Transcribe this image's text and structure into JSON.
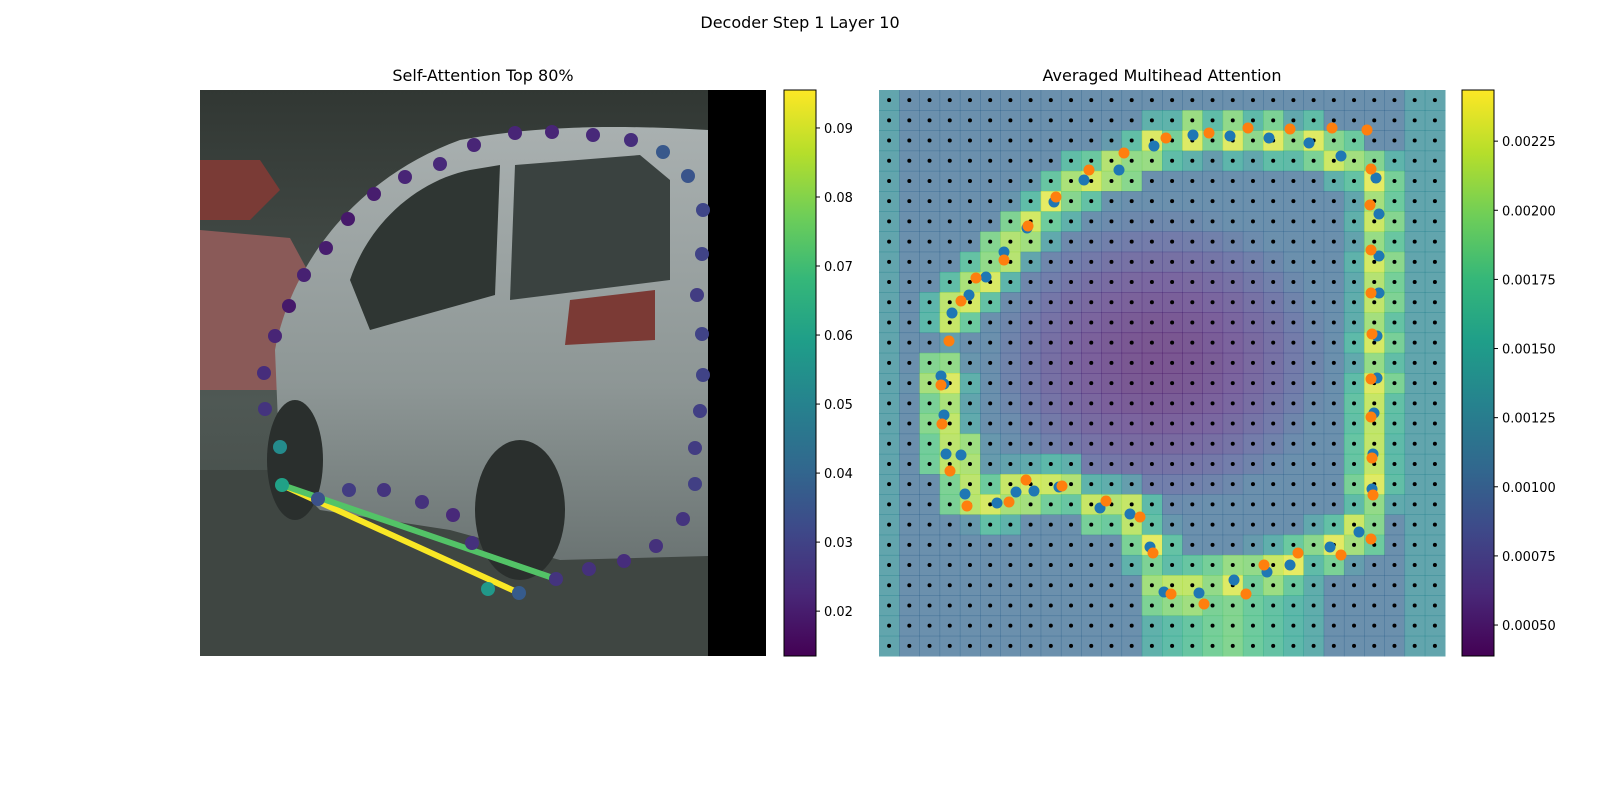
{
  "figure": {
    "title": "Decoder Step 1 Layer 10"
  },
  "colors": {
    "viridis": [
      "#440154",
      "#482878",
      "#3e4989",
      "#31688e",
      "#26828e",
      "#1f9e89",
      "#35b779",
      "#6ece58",
      "#b5de2b",
      "#fde725"
    ],
    "background_photo_left": "#4c5552",
    "black_bar": "#000000",
    "point_blue": "#1f77b4",
    "point_orange": "#ff7f0e",
    "grid_dot": "#000000"
  },
  "chart_data": [
    {
      "type": "scatter",
      "title": "Self-Attention Top 80%",
      "xlabel": "",
      "ylabel": "",
      "axes_visible": false,
      "background": "photo of silver minivan with black right margin",
      "colorbar": {
        "min": 0.0135,
        "max": 0.0955,
        "ticks": [
          "0.02",
          "0.03",
          "0.04",
          "0.05",
          "0.06",
          "0.07",
          "0.08",
          "0.09"
        ],
        "tick_values": [
          0.02,
          0.03,
          0.04,
          0.05,
          0.06,
          0.07,
          0.08,
          0.09
        ],
        "colormap": "viridis"
      },
      "points": [
        {
          "x": 82,
          "y": 395,
          "v": 0.06
        },
        {
          "x": 80,
          "y": 357,
          "v": 0.053
        },
        {
          "x": 65,
          "y": 319,
          "v": 0.026
        },
        {
          "x": 64,
          "y": 283,
          "v": 0.024
        },
        {
          "x": 75,
          "y": 246,
          "v": 0.022
        },
        {
          "x": 89,
          "y": 216,
          "v": 0.019
        },
        {
          "x": 104,
          "y": 185,
          "v": 0.021
        },
        {
          "x": 126,
          "y": 158,
          "v": 0.02
        },
        {
          "x": 148,
          "y": 129,
          "v": 0.019
        },
        {
          "x": 174,
          "y": 104,
          "v": 0.02
        },
        {
          "x": 205,
          "y": 87,
          "v": 0.022
        },
        {
          "x": 240,
          "y": 74,
          "v": 0.023
        },
        {
          "x": 274,
          "y": 55,
          "v": 0.022
        },
        {
          "x": 315,
          "y": 43,
          "v": 0.022
        },
        {
          "x": 352,
          "y": 42,
          "v": 0.022
        },
        {
          "x": 393,
          "y": 45,
          "v": 0.023
        },
        {
          "x": 431,
          "y": 50,
          "v": 0.024
        },
        {
          "x": 463,
          "y": 62,
          "v": 0.036
        },
        {
          "x": 488,
          "y": 86,
          "v": 0.035
        },
        {
          "x": 503,
          "y": 120,
          "v": 0.031
        },
        {
          "x": 502,
          "y": 164,
          "v": 0.03
        },
        {
          "x": 497,
          "y": 205,
          "v": 0.028
        },
        {
          "x": 502,
          "y": 244,
          "v": 0.03
        },
        {
          "x": 503,
          "y": 285,
          "v": 0.03
        },
        {
          "x": 500,
          "y": 321,
          "v": 0.029
        },
        {
          "x": 495,
          "y": 358,
          "v": 0.028
        },
        {
          "x": 495,
          "y": 394,
          "v": 0.029
        },
        {
          "x": 483,
          "y": 429,
          "v": 0.026
        },
        {
          "x": 456,
          "y": 456,
          "v": 0.025
        },
        {
          "x": 424,
          "y": 471,
          "v": 0.024
        },
        {
          "x": 389,
          "y": 479,
          "v": 0.025
        },
        {
          "x": 356,
          "y": 489,
          "v": 0.026
        },
        {
          "x": 319,
          "y": 503,
          "v": 0.037
        },
        {
          "x": 288,
          "y": 499,
          "v": 0.057
        },
        {
          "x": 272,
          "y": 453,
          "v": 0.025
        },
        {
          "x": 253,
          "y": 425,
          "v": 0.023
        },
        {
          "x": 222,
          "y": 412,
          "v": 0.025
        },
        {
          "x": 184,
          "y": 400,
          "v": 0.026
        },
        {
          "x": 149,
          "y": 400,
          "v": 0.028
        },
        {
          "x": 118,
          "y": 409,
          "v": 0.034
        }
      ],
      "attention_lines": [
        {
          "from": [
            82,
            395
          ],
          "to": [
            319,
            503
          ],
          "v": 0.095
        },
        {
          "from": [
            82,
            395
          ],
          "to": [
            356,
            489
          ],
          "v": 0.073
        }
      ]
    },
    {
      "type": "heatmap",
      "title": "Averaged Multihead Attention",
      "xlabel": "",
      "ylabel": "",
      "axes_visible": false,
      "grid": {
        "cols": 28,
        "rows": 28
      },
      "overlay": "attention heatmap over car photo with reference-point grid",
      "colorbar": {
        "min": 0.000388,
        "max": 0.002435,
        "ticks": [
          "0.00050",
          "0.00075",
          "0.00100",
          "0.00125",
          "0.00150",
          "0.00175",
          "0.00200",
          "0.00225"
        ],
        "tick_values": [
          0.0005,
          0.00075,
          0.001,
          0.00125,
          0.0015,
          0.00175,
          0.002,
          0.00225
        ],
        "colormap": "viridis"
      },
      "series": [
        {
          "color": "#1f77b4",
          "points": [
            [
              62,
              286
            ],
            [
              65,
              294
            ],
            [
              65,
              325
            ],
            [
              67,
              364
            ],
            [
              82,
              365
            ],
            [
              86,
              404
            ],
            [
              118,
              413
            ],
            [
              137,
              402
            ],
            [
              155,
              401
            ],
            [
              180,
              397
            ],
            [
              221,
              418
            ],
            [
              251,
              424
            ],
            [
              271,
              457
            ],
            [
              285,
              502
            ],
            [
              320,
              503
            ],
            [
              355,
              490
            ],
            [
              388,
              482
            ],
            [
              411,
              475
            ],
            [
              451,
              457
            ],
            [
              480,
              442
            ],
            [
              493,
              399
            ],
            [
              494,
              364
            ],
            [
              495,
              323
            ],
            [
              498,
              288
            ],
            [
              498,
              246
            ],
            [
              500,
              203
            ],
            [
              500,
              166
            ],
            [
              500,
              124
            ],
            [
              497,
              88
            ],
            [
              462,
              66
            ],
            [
              430,
              53
            ],
            [
              390,
              48
            ],
            [
              351,
              46
            ],
            [
              314,
              45
            ],
            [
              275,
              56
            ],
            [
              240,
              80
            ],
            [
              205,
              90
            ],
            [
              175,
              112
            ],
            [
              148,
              138
            ],
            [
              125,
              162
            ],
            [
              107,
              187
            ],
            [
              90,
              205
            ],
            [
              73,
              223
            ]
          ]
        },
        {
          "color": "#ff7f0e",
          "points": [
            [
              62,
              295
            ],
            [
              63,
              334
            ],
            [
              71,
              381
            ],
            [
              88,
              416
            ],
            [
              130,
              412
            ],
            [
              147,
              390
            ],
            [
              183,
              396
            ],
            [
              227,
              411
            ],
            [
              261,
              427
            ],
            [
              274,
              463
            ],
            [
              292,
              504
            ],
            [
              325,
              514
            ],
            [
              367,
              504
            ],
            [
              385,
              475
            ],
            [
              419,
              463
            ],
            [
              462,
              465
            ],
            [
              492,
              449
            ],
            [
              494,
              405
            ],
            [
              493,
              368
            ],
            [
              492,
              327
            ],
            [
              492,
              289
            ],
            [
              493,
              244
            ],
            [
              492,
              203
            ],
            [
              492,
              160
            ],
            [
              491,
              115
            ],
            [
              492,
              79
            ],
            [
              488,
              40
            ],
            [
              453,
              38
            ],
            [
              411,
              39
            ],
            [
              369,
              38
            ],
            [
              330,
              43
            ],
            [
              287,
              48
            ],
            [
              245,
              63
            ],
            [
              210,
              80
            ],
            [
              177,
              107
            ],
            [
              149,
              136
            ],
            [
              125,
              170
            ],
            [
              97,
              188
            ],
            [
              82,
              211
            ],
            [
              70,
              251
            ]
          ]
        }
      ]
    }
  ]
}
